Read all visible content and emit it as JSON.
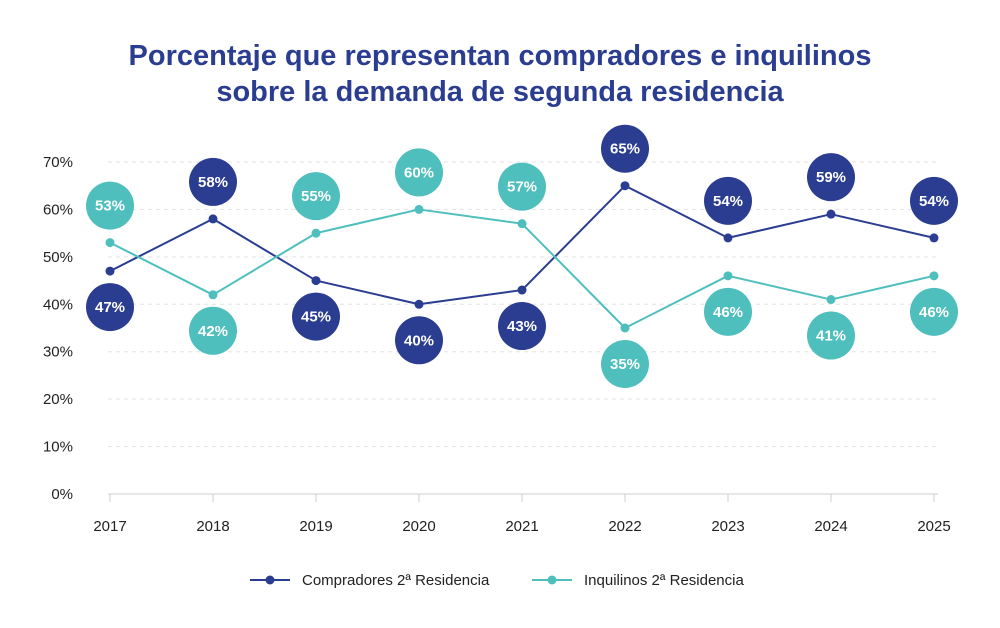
{
  "chart_data": {
    "type": "line",
    "title_lines": [
      "Porcentaje que representan compradores e inquilinos",
      "sobre la demanda de segunda residencia"
    ],
    "categories": [
      "2017",
      "2018",
      "2019",
      "2020",
      "2021",
      "2022",
      "2023",
      "2024",
      "2025"
    ],
    "ylim": [
      0,
      70
    ],
    "yticks": [
      0,
      10,
      20,
      30,
      40,
      50,
      60,
      70
    ],
    "ytick_labels": [
      "0%",
      "10%",
      "20%",
      "30%",
      "40%",
      "50%",
      "60%",
      "70%"
    ],
    "grid": true,
    "legend_position": "bottom-center",
    "series": [
      {
        "name": "Compradores 2ª Residencia",
        "color": "#2b3d91",
        "values": [
          47,
          58,
          45,
          40,
          43,
          65,
          54,
          59,
          54
        ],
        "labels": [
          "47%",
          "58%",
          "45%",
          "40%",
          "43%",
          "65%",
          "54%",
          "59%",
          "54%"
        ],
        "label_side": [
          "below",
          "above",
          "below",
          "below",
          "below",
          "above",
          "above",
          "above",
          "above"
        ]
      },
      {
        "name": "Inquilinos 2ª Residencia",
        "color": "#4fbfbd",
        "values": [
          53,
          42,
          55,
          60,
          57,
          35,
          46,
          41,
          46
        ],
        "labels": [
          "53%",
          "42%",
          "55%",
          "60%",
          "57%",
          "35%",
          "46%",
          "41%",
          "46%"
        ],
        "label_side": [
          "above",
          "below",
          "above",
          "above",
          "above",
          "below",
          "below",
          "below",
          "below"
        ]
      }
    ]
  }
}
